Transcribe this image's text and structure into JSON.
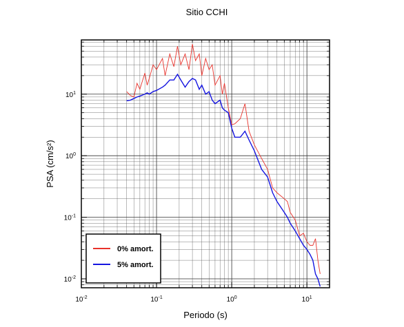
{
  "chart_data": {
    "type": "line",
    "title": "Sitio CCHI",
    "x_label": "Periodo (s)",
    "y_label": "PSA (cm/s²)",
    "x": [
      0.04,
      0.045,
      0.05,
      0.055,
      0.06,
      0.07,
      0.075,
      0.08,
      0.09,
      0.1,
      0.12,
      0.13,
      0.15,
      0.17,
      0.19,
      0.21,
      0.24,
      0.27,
      0.3,
      0.33,
      0.37,
      0.4,
      0.45,
      0.5,
      0.55,
      0.6,
      0.7,
      0.75,
      0.8,
      0.9,
      1.0,
      1.1,
      1.3,
      1.5,
      1.7,
      2.0,
      2.5,
      3,
      3.5,
      4,
      5,
      5.5,
      6,
      7,
      8,
      9,
      10,
      11,
      12,
      13,
      14,
      15
    ],
    "series": [
      {
        "name": "0% amort.",
        "color": "#e8312a",
        "values": [
          11,
          9.5,
          9,
          15,
          12,
          22,
          14,
          18,
          30,
          25,
          38,
          20,
          45,
          28,
          60,
          30,
          45,
          25,
          65,
          35,
          45,
          20,
          38,
          25,
          30,
          14,
          20,
          10,
          15,
          6,
          3.2,
          3.3,
          4,
          7,
          2.5,
          1.5,
          0.9,
          0.6,
          0.3,
          0.25,
          0.2,
          0.18,
          0.12,
          0.09,
          0.05,
          0.055,
          0.04,
          0.035,
          0.035,
          0.045,
          0.02,
          0.012
        ]
      },
      {
        "name": "5% amort.",
        "color": "#1414e0",
        "values": [
          7.8,
          8,
          8.5,
          9,
          9.3,
          10,
          10.5,
          10,
          11,
          11.5,
          13,
          14,
          17,
          17,
          21,
          17,
          13,
          16,
          18,
          17,
          12,
          14,
          10,
          11,
          8,
          7,
          8,
          6,
          5.5,
          5,
          2.8,
          2,
          2,
          2.5,
          1.8,
          1.2,
          0.6,
          0.45,
          0.25,
          0.18,
          0.12,
          0.1,
          0.08,
          0.06,
          0.045,
          0.035,
          0.03,
          0.025,
          0.02,
          0.012,
          0.01,
          0.0075
        ]
      }
    ],
    "xlim": [
      0.01,
      20
    ],
    "ylim": [
      0.00716,
      76
    ],
    "xticks": [
      {
        "value": 0.01,
        "label": "10^-2"
      },
      {
        "value": 0.1,
        "label": "10^-1"
      },
      {
        "value": 1,
        "label": "10^0"
      },
      {
        "value": 10,
        "label": "10^1"
      }
    ],
    "yticks": [
      {
        "value": 0.01,
        "label": "10^-2"
      },
      {
        "value": 0.1,
        "label": "10^-1"
      },
      {
        "value": 1,
        "label": "10^0"
      },
      {
        "value": 10,
        "label": "10^1"
      }
    ],
    "log_x": true,
    "log_y": true,
    "grid": true,
    "legend": "lower left"
  }
}
